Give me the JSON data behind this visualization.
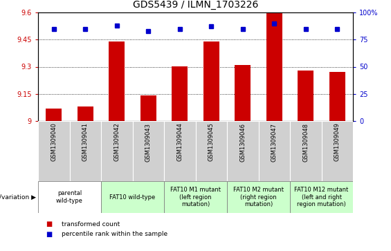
{
  "title": "GDS5439 / ILMN_1703226",
  "samples": [
    "GSM1309040",
    "GSM1309041",
    "GSM1309042",
    "GSM1309043",
    "GSM1309044",
    "GSM1309045",
    "GSM1309046",
    "GSM1309047",
    "GSM1309048",
    "GSM1309049"
  ],
  "transformed_counts": [
    9.07,
    9.08,
    9.44,
    9.14,
    9.3,
    9.44,
    9.31,
    9.6,
    9.28,
    9.27
  ],
  "percentile_ranks": [
    85,
    85,
    88,
    83,
    85,
    87,
    85,
    90,
    85,
    85
  ],
  "ylim_left": [
    9.0,
    9.6
  ],
  "yticks_left": [
    9.0,
    9.15,
    9.3,
    9.45,
    9.6
  ],
  "ytick_labels_left": [
    "9",
    "9.15",
    "9.3",
    "9.45",
    "9.6"
  ],
  "ylim_right": [
    0,
    100
  ],
  "yticks_right": [
    0,
    25,
    50,
    75,
    100
  ],
  "ytick_labels_right": [
    "0",
    "25",
    "50",
    "75",
    "100%"
  ],
  "bar_color": "#cc0000",
  "dot_color": "#0000cc",
  "bar_width": 0.5,
  "genotype_label": "genotype/variation",
  "groups": [
    {
      "label": "parental\nwild-type",
      "indices": [
        0,
        1
      ],
      "color": "#ffffff"
    },
    {
      "label": "FAT10 wild-type",
      "indices": [
        2,
        3
      ],
      "color": "#ccffcc"
    },
    {
      "label": "FAT10 M1 mutant\n(left region\nmutation)",
      "indices": [
        4,
        5
      ],
      "color": "#ccffcc"
    },
    {
      "label": "FAT10 M2 mutant\n(right region\nmutation)",
      "indices": [
        6,
        7
      ],
      "color": "#ccffcc"
    },
    {
      "label": "FAT10 M12 mutant\n(left and right\nregion mutation)",
      "indices": [
        8,
        9
      ],
      "color": "#ccffcc"
    }
  ],
  "sample_bg": "#d0d0d0",
  "plot_bg": "#ffffff",
  "left_ax_color": "#cc0000",
  "right_ax_color": "#0000cc",
  "title_fontsize": 10,
  "tick_fontsize": 7,
  "sample_fontsize": 6,
  "geno_fontsize": 6
}
